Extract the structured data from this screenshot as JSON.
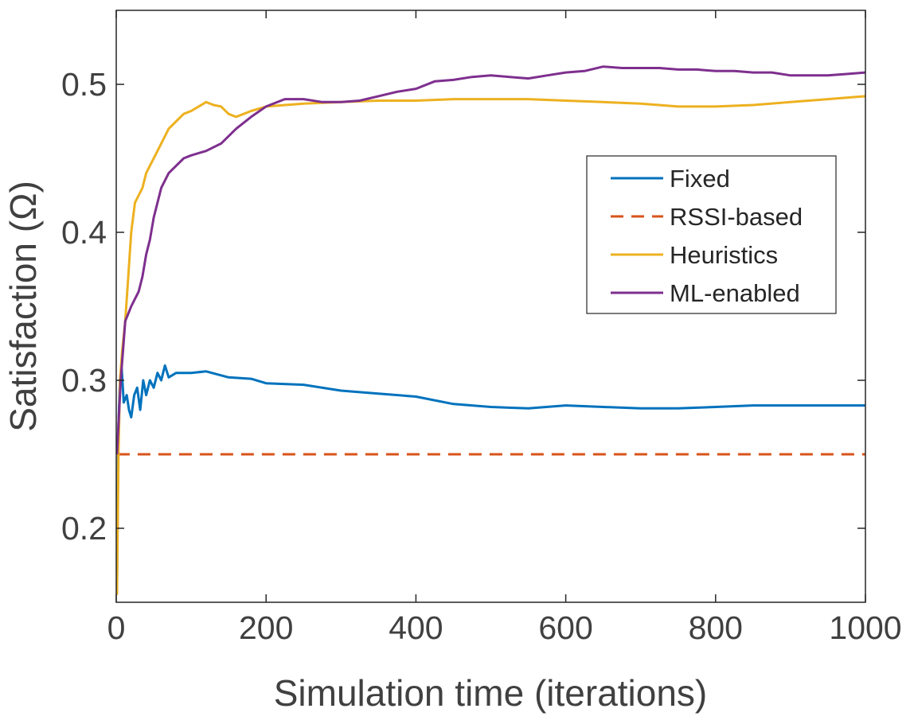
{
  "chart_data": {
    "type": "line",
    "xlabel": "Simulation time (iterations)",
    "ylabel": "Satisfaction (Ω)",
    "xlim": [
      0,
      1000
    ],
    "ylim": [
      0.15,
      0.55
    ],
    "xticks": [
      0,
      200,
      400,
      600,
      800,
      1000
    ],
    "yticks": [
      0.2,
      0.3,
      0.4,
      0.5
    ],
    "xtick_labels": [
      "0",
      "200",
      "400",
      "600",
      "800",
      "1000"
    ],
    "ytick_labels": [
      "0.2",
      "0.3",
      "0.4",
      "0.5"
    ],
    "grid": false,
    "legend_position": "right",
    "series": [
      {
        "name": "Fixed",
        "color": "#0072BD",
        "dash": "solid",
        "points": [
          [
            1,
            0.16
          ],
          [
            3,
            0.27
          ],
          [
            5,
            0.3
          ],
          [
            7,
            0.31
          ],
          [
            10,
            0.285
          ],
          [
            14,
            0.29
          ],
          [
            17,
            0.28
          ],
          [
            20,
            0.275
          ],
          [
            24,
            0.29
          ],
          [
            28,
            0.295
          ],
          [
            32,
            0.28
          ],
          [
            36,
            0.3
          ],
          [
            40,
            0.29
          ],
          [
            45,
            0.3
          ],
          [
            50,
            0.295
          ],
          [
            55,
            0.305
          ],
          [
            60,
            0.3
          ],
          [
            65,
            0.31
          ],
          [
            70,
            0.302
          ],
          [
            80,
            0.305
          ],
          [
            100,
            0.305
          ],
          [
            120,
            0.306
          ],
          [
            150,
            0.302
          ],
          [
            180,
            0.301
          ],
          [
            200,
            0.298
          ],
          [
            250,
            0.297
          ],
          [
            300,
            0.293
          ],
          [
            350,
            0.291
          ],
          [
            400,
            0.289
          ],
          [
            450,
            0.284
          ],
          [
            500,
            0.282
          ],
          [
            550,
            0.281
          ],
          [
            600,
            0.283
          ],
          [
            650,
            0.282
          ],
          [
            700,
            0.281
          ],
          [
            750,
            0.281
          ],
          [
            800,
            0.282
          ],
          [
            850,
            0.283
          ],
          [
            900,
            0.283
          ],
          [
            950,
            0.283
          ],
          [
            1000,
            0.283
          ]
        ]
      },
      {
        "name": "RSSI-based",
        "color": "#D95319",
        "dash": "dashed",
        "points": [
          [
            1,
            0.25
          ],
          [
            1000,
            0.25
          ]
        ]
      },
      {
        "name": "Heuristics",
        "color": "#EDB120",
        "dash": "solid",
        "points": [
          [
            1,
            0.155
          ],
          [
            3,
            0.25
          ],
          [
            5,
            0.3
          ],
          [
            8,
            0.32
          ],
          [
            12,
            0.34
          ],
          [
            16,
            0.37
          ],
          [
            20,
            0.4
          ],
          [
            25,
            0.42
          ],
          [
            30,
            0.425
          ],
          [
            35,
            0.43
          ],
          [
            40,
            0.44
          ],
          [
            45,
            0.445
          ],
          [
            50,
            0.45
          ],
          [
            60,
            0.46
          ],
          [
            70,
            0.47
          ],
          [
            80,
            0.475
          ],
          [
            90,
            0.48
          ],
          [
            100,
            0.482
          ],
          [
            110,
            0.485
          ],
          [
            120,
            0.488
          ],
          [
            130,
            0.486
          ],
          [
            140,
            0.485
          ],
          [
            150,
            0.48
          ],
          [
            160,
            0.478
          ],
          [
            170,
            0.48
          ],
          [
            180,
            0.482
          ],
          [
            200,
            0.485
          ],
          [
            250,
            0.487
          ],
          [
            300,
            0.488
          ],
          [
            350,
            0.489
          ],
          [
            400,
            0.489
          ],
          [
            450,
            0.49
          ],
          [
            500,
            0.49
          ],
          [
            550,
            0.49
          ],
          [
            600,
            0.489
          ],
          [
            650,
            0.488
          ],
          [
            700,
            0.487
          ],
          [
            750,
            0.485
          ],
          [
            800,
            0.485
          ],
          [
            850,
            0.486
          ],
          [
            900,
            0.488
          ],
          [
            950,
            0.49
          ],
          [
            1000,
            0.492
          ]
        ]
      },
      {
        "name": "ML-enabled",
        "color": "#7E2F8E",
        "dash": "solid",
        "points": [
          [
            1,
            0.25
          ],
          [
            3,
            0.27
          ],
          [
            6,
            0.3
          ],
          [
            9,
            0.32
          ],
          [
            12,
            0.34
          ],
          [
            16,
            0.345
          ],
          [
            20,
            0.35
          ],
          [
            25,
            0.355
          ],
          [
            30,
            0.36
          ],
          [
            35,
            0.37
          ],
          [
            40,
            0.385
          ],
          [
            45,
            0.395
          ],
          [
            50,
            0.41
          ],
          [
            60,
            0.43
          ],
          [
            70,
            0.44
          ],
          [
            80,
            0.445
          ],
          [
            90,
            0.45
          ],
          [
            100,
            0.452
          ],
          [
            120,
            0.455
          ],
          [
            140,
            0.46
          ],
          [
            160,
            0.47
          ],
          [
            180,
            0.478
          ],
          [
            200,
            0.485
          ],
          [
            225,
            0.49
          ],
          [
            250,
            0.49
          ],
          [
            275,
            0.488
          ],
          [
            300,
            0.488
          ],
          [
            325,
            0.489
          ],
          [
            350,
            0.492
          ],
          [
            375,
            0.495
          ],
          [
            400,
            0.497
          ],
          [
            425,
            0.502
          ],
          [
            450,
            0.503
          ],
          [
            475,
            0.505
          ],
          [
            500,
            0.506
          ],
          [
            525,
            0.505
          ],
          [
            550,
            0.504
          ],
          [
            575,
            0.506
          ],
          [
            600,
            0.508
          ],
          [
            625,
            0.509
          ],
          [
            650,
            0.512
          ],
          [
            675,
            0.511
          ],
          [
            700,
            0.511
          ],
          [
            725,
            0.511
          ],
          [
            750,
            0.51
          ],
          [
            775,
            0.51
          ],
          [
            800,
            0.509
          ],
          [
            825,
            0.509
          ],
          [
            850,
            0.508
          ],
          [
            875,
            0.508
          ],
          [
            900,
            0.506
          ],
          [
            925,
            0.506
          ],
          [
            950,
            0.506
          ],
          [
            975,
            0.507
          ],
          [
            1000,
            0.508
          ]
        ]
      }
    ]
  }
}
